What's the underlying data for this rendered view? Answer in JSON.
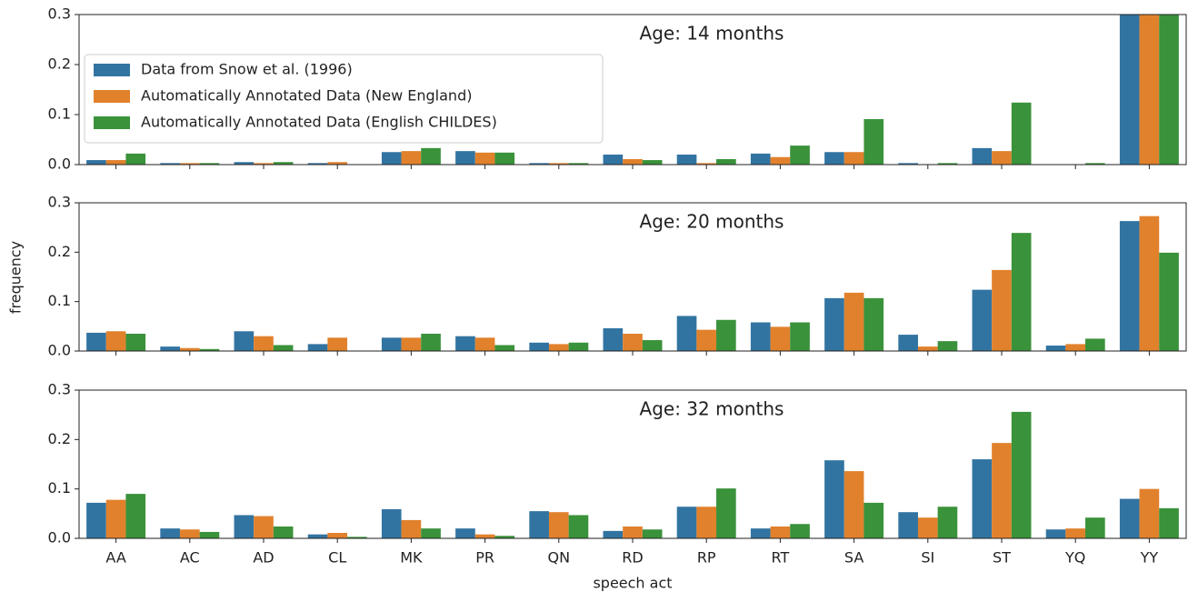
{
  "chart_data": [
    {
      "type": "bar",
      "title": "Age: 14 months",
      "legend": "upper left",
      "ylim": [
        0,
        0.3
      ],
      "yticks": [
        {
          "value": 0,
          "label": "0.0"
        },
        {
          "value": 0.1,
          "label": "0.1"
        },
        {
          "value": 0.2,
          "label": "0.2"
        },
        {
          "value": 0.3,
          "label": "0.3"
        }
      ],
      "series": [
        {
          "name": "Data from Snow et al. (1996)",
          "color": "#3274a1",
          "values": [
            0.009,
            0.003,
            0.005,
            0.003,
            0.025,
            0.027,
            0.003,
            0.02,
            0.02,
            0.022,
            0.025,
            0.003,
            0.033,
            0,
            0.33
          ]
        },
        {
          "name": "Automatically Annotated Data (New England)",
          "color": "#e1812c",
          "values": [
            0.009,
            0.003,
            0.003,
            0.005,
            0.027,
            0.024,
            0.003,
            0.011,
            0.003,
            0.015,
            0.025,
            0,
            0.027,
            0,
            0.32
          ]
        },
        {
          "name": "Automatically Annotated Data (English CHILDES)",
          "color": "#3a923a",
          "values": [
            0.022,
            0.003,
            0.005,
            0,
            0.033,
            0.024,
            0.003,
            0.009,
            0.011,
            0.038,
            0.091,
            0.003,
            0.124,
            0.003,
            0.31
          ]
        }
      ]
    },
    {
      "type": "bar",
      "title": "Age: 20 months",
      "ylabel": "frequency",
      "ylim": [
        0,
        0.3
      ],
      "yticks": [
        {
          "value": 0,
          "label": "0.0"
        },
        {
          "value": 0.1,
          "label": "0.1"
        },
        {
          "value": 0.2,
          "label": "0.2"
        },
        {
          "value": 0.3,
          "label": "0.3"
        }
      ],
      "series": [
        {
          "values": [
            0.037,
            0.009,
            0.04,
            0.014,
            0.027,
            0.03,
            0.017,
            0.046,
            0.071,
            0.058,
            0.107,
            0.033,
            0.124,
            0.011,
            0.263
          ]
        },
        {
          "values": [
            0.04,
            0.006,
            0.03,
            0.027,
            0.027,
            0.027,
            0.014,
            0.035,
            0.043,
            0.049,
            0.118,
            0.009,
            0.164,
            0.014,
            0.273
          ]
        },
        {
          "values": [
            0.035,
            0.004,
            0.012,
            0,
            0.035,
            0.012,
            0.017,
            0.022,
            0.063,
            0.058,
            0.107,
            0.02,
            0.239,
            0.025,
            0.199
          ]
        }
      ]
    },
    {
      "type": "bar",
      "title": "Age: 32 months",
      "xlabel": "speech act",
      "categories": [
        "AA",
        "AC",
        "AD",
        "CL",
        "MK",
        "PR",
        "QN",
        "RD",
        "RP",
        "RT",
        "SA",
        "SI",
        "ST",
        "YQ",
        "YY"
      ],
      "ylim": [
        0,
        0.3
      ],
      "yticks": [
        {
          "value": 0,
          "label": "0.0"
        },
        {
          "value": 0.1,
          "label": "0.1"
        },
        {
          "value": 0.2,
          "label": "0.2"
        },
        {
          "value": 0.3,
          "label": "0.3"
        }
      ],
      "series": [
        {
          "values": [
            0.072,
            0.02,
            0.047,
            0.008,
            0.059,
            0.02,
            0.055,
            0.015,
            0.064,
            0.02,
            0.158,
            0.053,
            0.16,
            0.018,
            0.08
          ]
        },
        {
          "values": [
            0.078,
            0.018,
            0.045,
            0.011,
            0.037,
            0.008,
            0.053,
            0.024,
            0.064,
            0.024,
            0.136,
            0.042,
            0.193,
            0.02,
            0.1
          ]
        },
        {
          "values": [
            0.09,
            0.013,
            0.024,
            0.003,
            0.02,
            0.005,
            0.047,
            0.018,
            0.101,
            0.029,
            0.072,
            0.064,
            0.256,
            0.042,
            0.061
          ]
        }
      ]
    }
  ]
}
